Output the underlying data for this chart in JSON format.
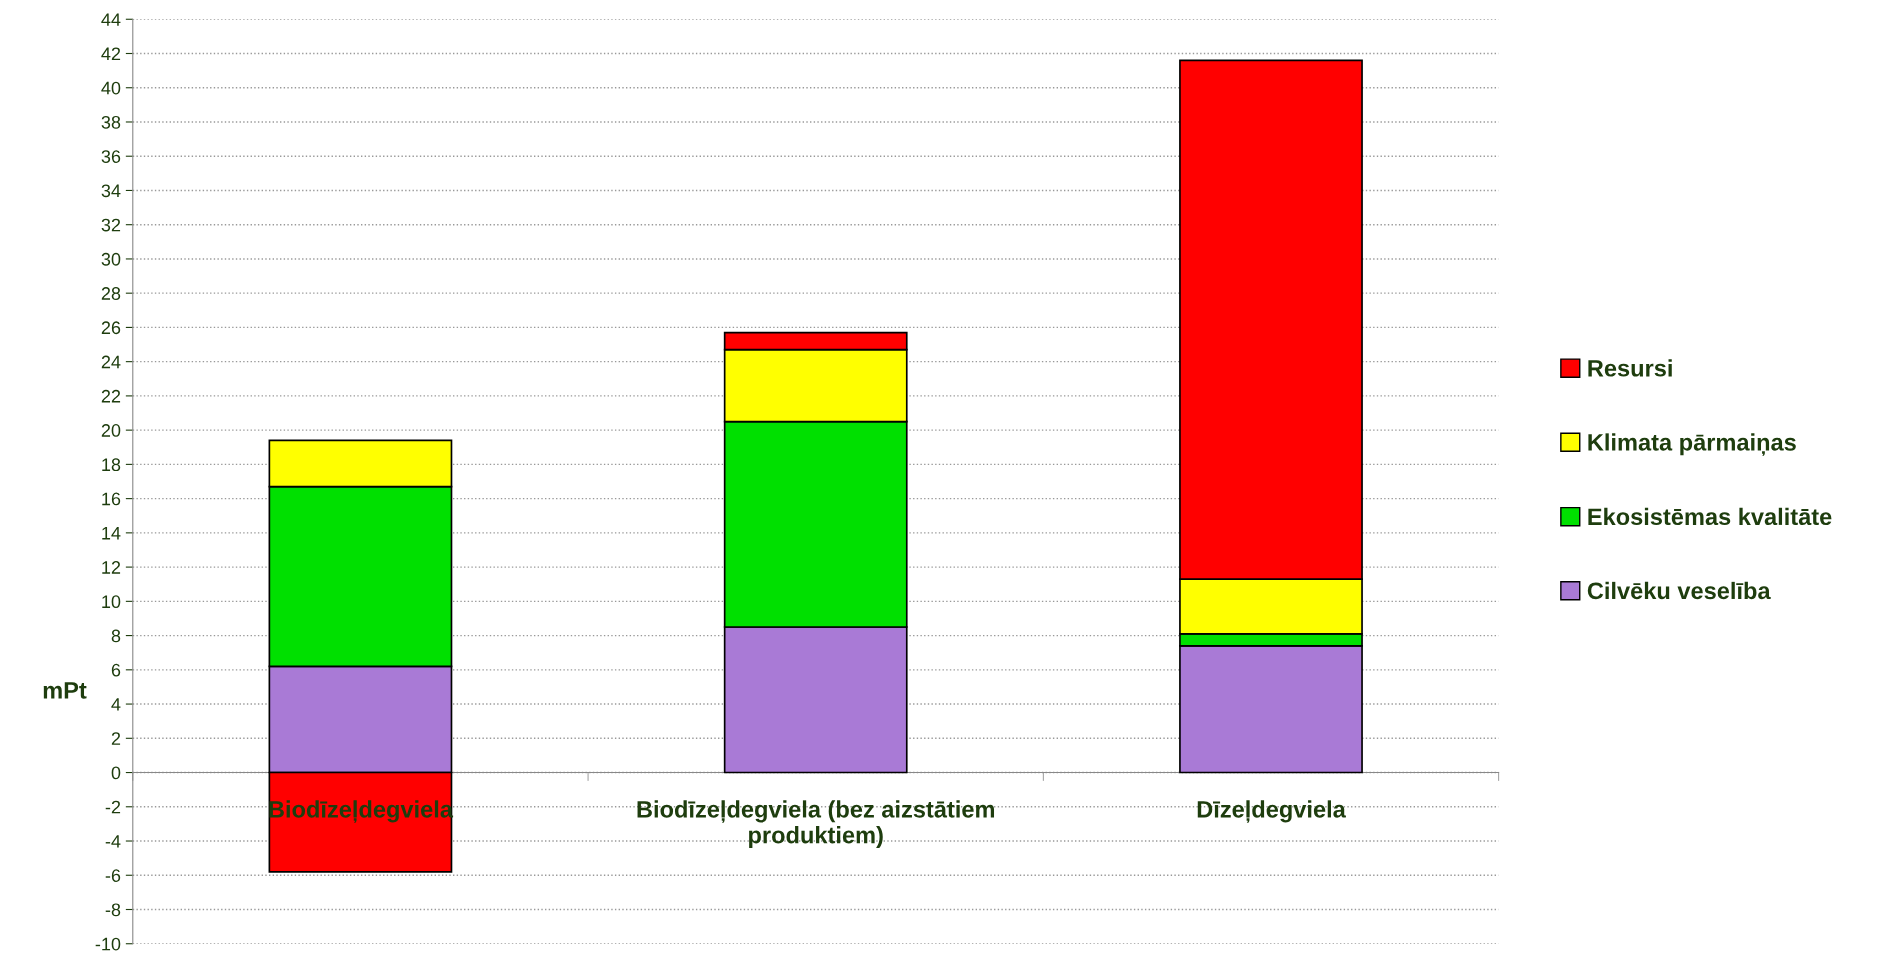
{
  "chart_data": {
    "type": "bar",
    "stacked": true,
    "ylabel": "mPt",
    "categories": [
      "Biodīzeļdegviela",
      "Biodīzeļdegviela (bez aizstātiem produktiem)",
      "Dīzeļdegviela"
    ],
    "series": [
      {
        "name": "Cilvēku veselība",
        "color": "#a97ad6",
        "values": [
          6.2,
          8.5,
          7.4
        ]
      },
      {
        "name": "Ekosistēmas kvalitāte",
        "color": "#00e000",
        "values": [
          10.5,
          12.0,
          0.7
        ]
      },
      {
        "name": "Klimata pārmaiņas",
        "color": "#ffff00",
        "values": [
          2.7,
          4.2,
          3.2
        ]
      },
      {
        "name": "Resursi",
        "color": "#ff0000",
        "values": [
          -5.8,
          1.0,
          30.3
        ]
      }
    ],
    "ylim": [
      -10,
      44
    ],
    "yticks": [
      -10,
      -8,
      -6,
      -4,
      -2,
      0,
      2,
      4,
      6,
      8,
      10,
      12,
      14,
      16,
      18,
      20,
      22,
      24,
      26,
      28,
      30,
      32,
      34,
      36,
      38,
      40,
      42,
      44
    ],
    "grid": "y",
    "legend": "right"
  }
}
